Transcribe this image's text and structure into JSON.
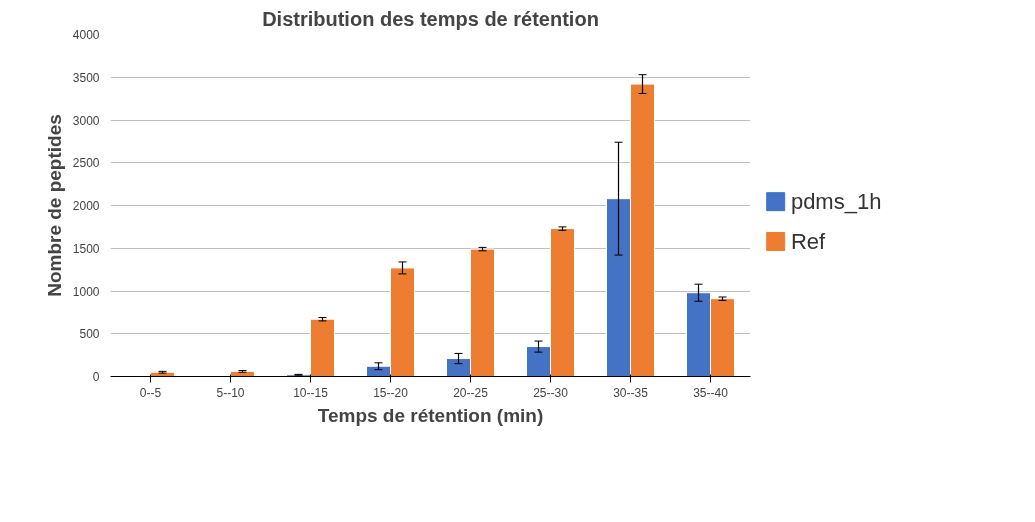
{
  "chart_data": {
    "type": "bar",
    "title": "Distribution des temps de rétention",
    "xlabel": "Temps de rétention (min)",
    "ylabel": "Nombre de peptides",
    "categories": [
      "0--5",
      "5--10",
      "10--15",
      "15--20",
      "20--25",
      "25--30",
      "30--35",
      "35--40"
    ],
    "series": [
      {
        "name": "pdms_1h",
        "color": "#4472c4",
        "values": [
          null,
          null,
          20,
          120,
          210,
          350,
          2080,
          980
        ],
        "errors": [
          null,
          null,
          5,
          40,
          60,
          65,
          660,
          100
        ]
      },
      {
        "name": "Ref",
        "color": "#ed7d31",
        "values": [
          50,
          60,
          670,
          1270,
          1490,
          1730,
          3420,
          910
        ],
        "errors": [
          10,
          10,
          20,
          70,
          20,
          20,
          110,
          20
        ]
      }
    ],
    "ylim": [
      0,
      4000
    ],
    "yticks": [
      0,
      500,
      1000,
      1500,
      2000,
      2500,
      3000,
      3500,
      4000
    ],
    "grid": "y",
    "legend": "right"
  }
}
